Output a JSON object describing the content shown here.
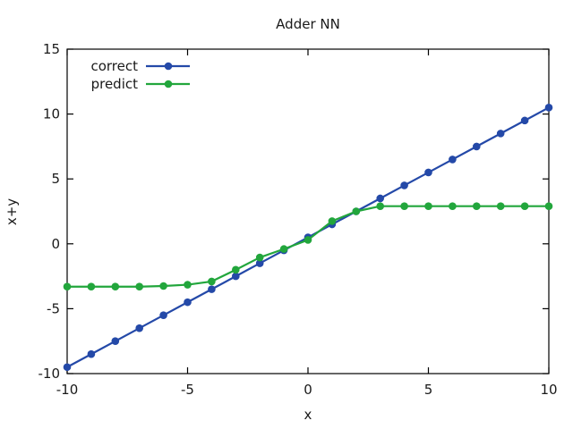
{
  "window": {
    "background": "#ffffff",
    "axis_color": "#000000",
    "text_color": "#1a1a1a"
  },
  "chart_data": {
    "type": "line",
    "title": "Adder NN",
    "xlabel": "x",
    "ylabel": "x+y",
    "xlim": [
      -10,
      10
    ],
    "ylim": [
      -10,
      15
    ],
    "xticks": [
      -10,
      -5,
      0,
      5,
      10
    ],
    "yticks": [
      -10,
      -5,
      0,
      5,
      10,
      15
    ],
    "grid": false,
    "legend_position": "top-left",
    "x": [
      -10,
      -9,
      -8,
      -7,
      -6,
      -5,
      -4,
      -3,
      -2,
      -1,
      0,
      1,
      2,
      3,
      4,
      5,
      6,
      7,
      8,
      9,
      10
    ],
    "series": [
      {
        "name": "correct",
        "color": "#2449a8",
        "marker": "circle",
        "values": [
          -9.5,
          -8.5,
          -7.5,
          -6.5,
          -5.5,
          -4.5,
          -3.5,
          -2.5,
          -1.5,
          -0.5,
          0.5,
          1.5,
          2.5,
          3.5,
          4.5,
          5.5,
          6.5,
          7.5,
          8.5,
          9.5,
          10.5
        ]
      },
      {
        "name": "predict",
        "color": "#22a63c",
        "marker": "circle",
        "values": [
          -3.3,
          -3.3,
          -3.3,
          -3.3,
          -3.25,
          -3.15,
          -2.9,
          -2.0,
          -1.05,
          -0.4,
          0.3,
          1.75,
          2.5,
          2.9,
          2.9,
          2.9,
          2.9,
          2.9,
          2.9,
          2.9,
          2.9
        ]
      }
    ]
  }
}
